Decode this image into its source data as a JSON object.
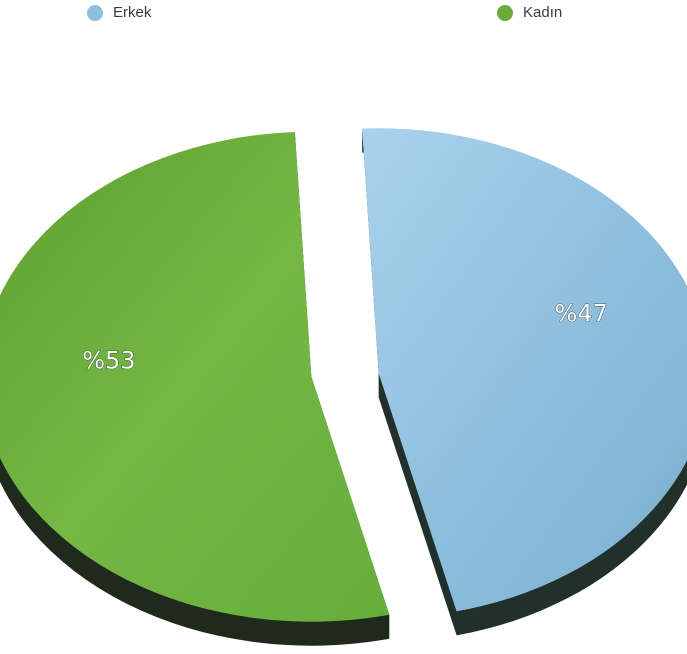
{
  "chart_data": {
    "type": "pie",
    "title": "",
    "legend_position": "top",
    "series": [
      {
        "name": "Erkek",
        "value": 47,
        "label": "%47",
        "color": "#8fbfde"
      },
      {
        "name": "Kadın",
        "value": 53,
        "label": "%53",
        "color": "#6aac3c"
      }
    ]
  }
}
